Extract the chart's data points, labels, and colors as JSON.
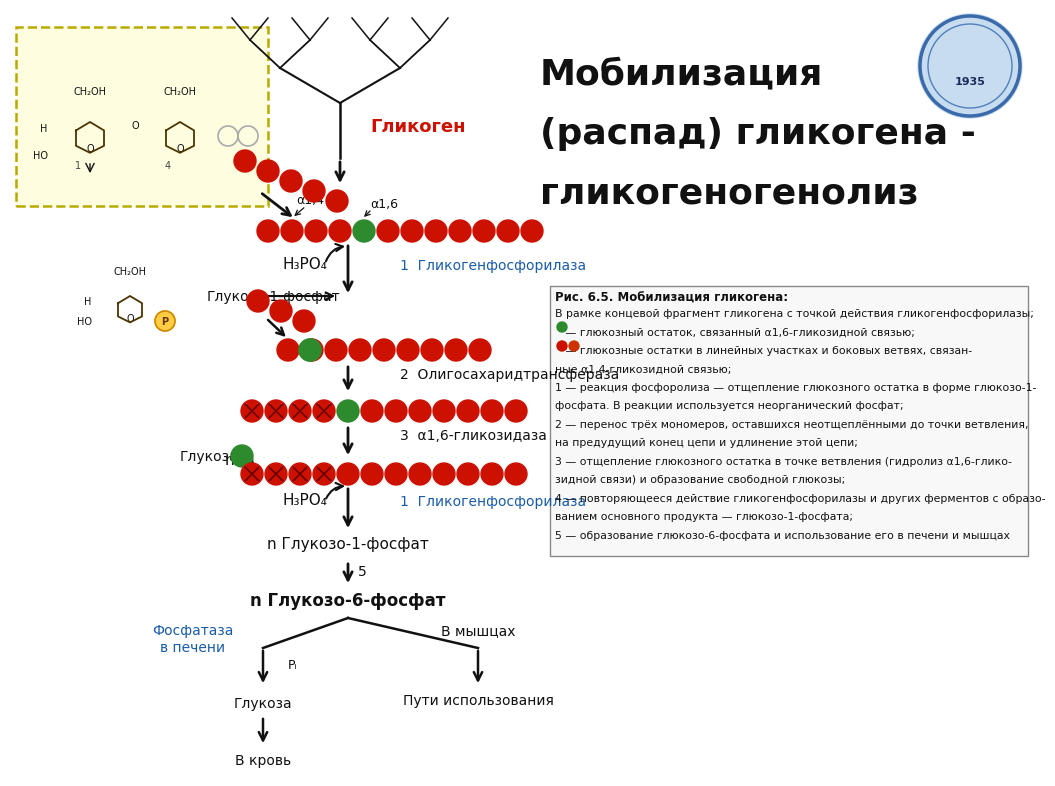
{
  "title_line1": "Мобилизация",
  "title_line2": "(распад) гликогена -",
  "title_line3": "гликогеногенолиз",
  "bg_color": "#ffffff",
  "red_color": "#cc1100",
  "green_color": "#2d8a2d",
  "blue_color": "#1a5ca8",
  "black_color": "#111111",
  "label_glycogen": "Гликоген",
  "label_h3po4": "H₃PO₄",
  "label_glukoso1_left": "Глукозо-1-фосфат",
  "label_glukoza": "Глукоза",
  "label_n_glukoso1": "n Глукозо-1-фосфат",
  "label_n_glukoso6": "n Глукозо-6-фосфат",
  "label_fosfataza": "Фосфатаза",
  "label_v_pecheni": "в печени",
  "label_v_krov": "В кровь",
  "label_v_myshcakh": "В мышцах",
  "label_puti": "Пути использования",
  "label_pi": "Pᵢ",
  "label_n": "n",
  "enzyme1": "1  Гликогенфосфорилаза",
  "enzyme2": "2  Олигосахаридтрансфераза",
  "enzyme3": "3  α1,6-гликозидаза",
  "enzyme4": "1  Гликогенфосфорилаза",
  "label_alpha14": "α1,4",
  "label_alpha16": "α1,6",
  "label_5": "5",
  "caption_title": "Рис. 6.5. Мобилизация гликогена:",
  "cap_lines": [
    "В рамке концевой фрагмент гликогена с точкой действия гликогенфосфорилазы;",
    "   — глюкозный остаток, связанный α1,6-гликозидной связью;",
    "   — глюкозные остатки в линейных участках и боковых ветвях, связан-",
    "ные α1,4-гликозидной связью;",
    "1 — реакция фосфоролиза — отщепление глюкозного остатка в форме глюкозо-1-",
    "фосфата. В реакции используется неорганический фосфат;",
    "2 — перенос трёх мономеров, оставшихся неотщеплёнными до точки ветвления,",
    "на предудущий конец цепи и удлинение этой цепи;",
    "3 — отщепление глюкозного остатка в точке ветвления (гидролиз α1,6-глико-",
    "зидной связи) и образование свободной глюкозы;",
    "4 — повторяющееся действие гликогенфосфорилазы и других ферментов с образо-",
    "ванием основного продукта — глюкозо-1-фосфата;",
    "5 — образование глюкозо-6-фосфата и использование его в печени и мышцах"
  ]
}
